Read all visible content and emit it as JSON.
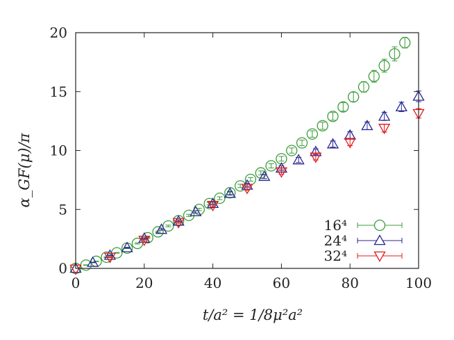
{
  "chart_data": {
    "type": "scatter",
    "xlabel": "t/a² = 1/8μ²a²",
    "ylabel": "α_GF(μ)/π",
    "xlim": [
      0,
      100
    ],
    "ylim": [
      0,
      20
    ],
    "x_ticks": [
      "0",
      "20",
      "40",
      "60",
      "80",
      "100"
    ],
    "y_ticks": [
      "0",
      "5",
      "10",
      "15",
      "20"
    ],
    "grid": false,
    "legend_position": "bottom-right",
    "series": [
      {
        "name": "16⁴",
        "marker": "circle",
        "color": "#3c9c3c",
        "points": [
          {
            "x": 0,
            "y": 0.0,
            "err": 0.0
          },
          {
            "x": 3,
            "y": 0.28,
            "err": 0.02
          },
          {
            "x": 6,
            "y": 0.6,
            "err": 0.02
          },
          {
            "x": 9,
            "y": 0.95,
            "err": 0.03
          },
          {
            "x": 12,
            "y": 1.32,
            "err": 0.03
          },
          {
            "x": 15,
            "y": 1.72,
            "err": 0.04
          },
          {
            "x": 18,
            "y": 2.12,
            "err": 0.05
          },
          {
            "x": 21,
            "y": 2.6,
            "err": 0.05
          },
          {
            "x": 24,
            "y": 3.1,
            "err": 0.06
          },
          {
            "x": 27,
            "y": 3.6,
            "err": 0.07
          },
          {
            "x": 30,
            "y": 4.05,
            "err": 0.08
          },
          {
            "x": 33,
            "y": 4.5,
            "err": 0.09
          },
          {
            "x": 36,
            "y": 5.0,
            "err": 0.1
          },
          {
            "x": 39,
            "y": 5.5,
            "err": 0.11
          },
          {
            "x": 42,
            "y": 5.95,
            "err": 0.12
          },
          {
            "x": 45,
            "y": 6.42,
            "err": 0.13
          },
          {
            "x": 48,
            "y": 7.0,
            "err": 0.14
          },
          {
            "x": 51,
            "y": 7.55,
            "err": 0.15
          },
          {
            "x": 54,
            "y": 8.1,
            "err": 0.17
          },
          {
            "x": 57,
            "y": 8.7,
            "err": 0.18
          },
          {
            "x": 60,
            "y": 9.3,
            "err": 0.2
          },
          {
            "x": 63,
            "y": 10.0,
            "err": 0.22
          },
          {
            "x": 66,
            "y": 10.65,
            "err": 0.24
          },
          {
            "x": 69,
            "y": 11.4,
            "err": 0.27
          },
          {
            "x": 72,
            "y": 12.1,
            "err": 0.3
          },
          {
            "x": 75,
            "y": 12.9,
            "err": 0.33
          },
          {
            "x": 78,
            "y": 13.7,
            "err": 0.36
          },
          {
            "x": 81,
            "y": 14.55,
            "err": 0.4
          },
          {
            "x": 84,
            "y": 15.4,
            "err": 0.45
          },
          {
            "x": 87,
            "y": 16.3,
            "err": 0.5
          },
          {
            "x": 90,
            "y": 17.2,
            "err": 0.55
          },
          {
            "x": 93,
            "y": 18.2,
            "err": 0.6
          },
          {
            "x": 96,
            "y": 19.15,
            "err": 0.45
          }
        ]
      },
      {
        "name": "24⁴",
        "marker": "triangle-up",
        "color": "#27268f",
        "points": [
          {
            "x": 0,
            "y": 0.0,
            "err": 0.0
          },
          {
            "x": 5,
            "y": 0.5,
            "err": 0.02
          },
          {
            "x": 10,
            "y": 1.1,
            "err": 0.03
          },
          {
            "x": 15,
            "y": 1.75,
            "err": 0.04
          },
          {
            "x": 20,
            "y": 2.55,
            "err": 0.05
          },
          {
            "x": 25,
            "y": 3.3,
            "err": 0.06
          },
          {
            "x": 30,
            "y": 4.0,
            "err": 0.08
          },
          {
            "x": 35,
            "y": 4.8,
            "err": 0.1
          },
          {
            "x": 40,
            "y": 5.5,
            "err": 0.12
          },
          {
            "x": 45,
            "y": 6.35,
            "err": 0.14
          },
          {
            "x": 50,
            "y": 7.05,
            "err": 0.16
          },
          {
            "x": 55,
            "y": 7.8,
            "err": 0.18
          },
          {
            "x": 60,
            "y": 8.5,
            "err": 0.2
          },
          {
            "x": 65,
            "y": 9.2,
            "err": 0.22
          },
          {
            "x": 70,
            "y": 9.9,
            "err": 0.24
          },
          {
            "x": 75,
            "y": 10.55,
            "err": 0.26
          },
          {
            "x": 80,
            "y": 11.3,
            "err": 0.3
          },
          {
            "x": 85,
            "y": 12.1,
            "err": 0.32
          },
          {
            "x": 90,
            "y": 12.9,
            "err": 0.35
          },
          {
            "x": 95,
            "y": 13.7,
            "err": 0.4
          },
          {
            "x": 100,
            "y": 14.6,
            "err": 0.45
          }
        ]
      },
      {
        "name": "32⁴",
        "marker": "triangle-down",
        "color": "#e41a1c",
        "points": [
          {
            "x": 0,
            "y": -0.05,
            "err": 0.0
          },
          {
            "x": 10,
            "y": 0.95,
            "err": 0.03
          },
          {
            "x": 20,
            "y": 2.4,
            "err": 0.05
          },
          {
            "x": 30,
            "y": 3.9,
            "err": 0.08
          },
          {
            "x": 40,
            "y": 5.35,
            "err": 0.12
          },
          {
            "x": 50,
            "y": 6.8,
            "err": 0.18
          },
          {
            "x": 60,
            "y": 8.2,
            "err": 0.22
          },
          {
            "x": 70,
            "y": 9.45,
            "err": 0.25
          },
          {
            "x": 80,
            "y": 10.7,
            "err": 0.28
          },
          {
            "x": 90,
            "y": 11.9,
            "err": 0.33
          },
          {
            "x": 100,
            "y": 13.15,
            "err": 0.4
          }
        ]
      }
    ]
  }
}
